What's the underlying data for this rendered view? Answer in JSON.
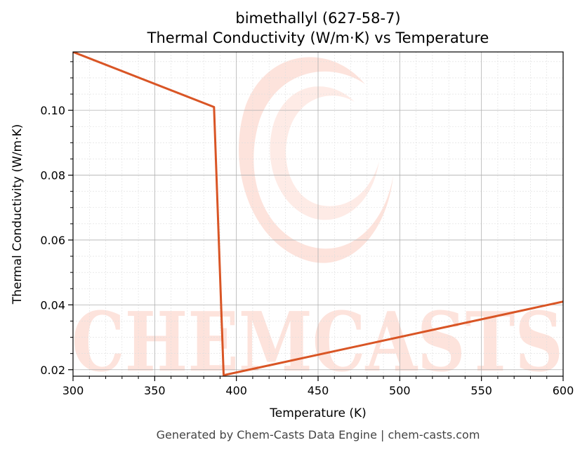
{
  "chart_data": {
    "type": "line",
    "title": "bimethallyl (627-58-7)",
    "subtitle": "Thermal Conductivity (W/m·K) vs Temperature",
    "xlabel": "Temperature (K)",
    "ylabel": "Thermal Conductivity (W/m·K)",
    "xlim": [
      300,
      600
    ],
    "ylim": [
      0.018,
      0.118
    ],
    "xticks": [
      300,
      350,
      400,
      450,
      500,
      550,
      600
    ],
    "yticks": [
      0.02,
      0.04,
      0.06,
      0.08,
      0.1
    ],
    "xtick_labels": [
      "300",
      "350",
      "400",
      "450",
      "500",
      "550",
      "600"
    ],
    "ytick_labels": [
      "0.02",
      "0.04",
      "0.06",
      "0.08",
      "0.10"
    ],
    "grid": true,
    "series": [
      {
        "color": "#d95525",
        "x": [
          300,
          386.3,
          392.2,
          600
        ],
        "y": [
          0.118,
          0.101,
          0.0183,
          0.041
        ]
      }
    ],
    "watermark": "CHEMCASTS",
    "footer": "Generated by Chem-Casts Data Engine | chem-casts.com"
  }
}
